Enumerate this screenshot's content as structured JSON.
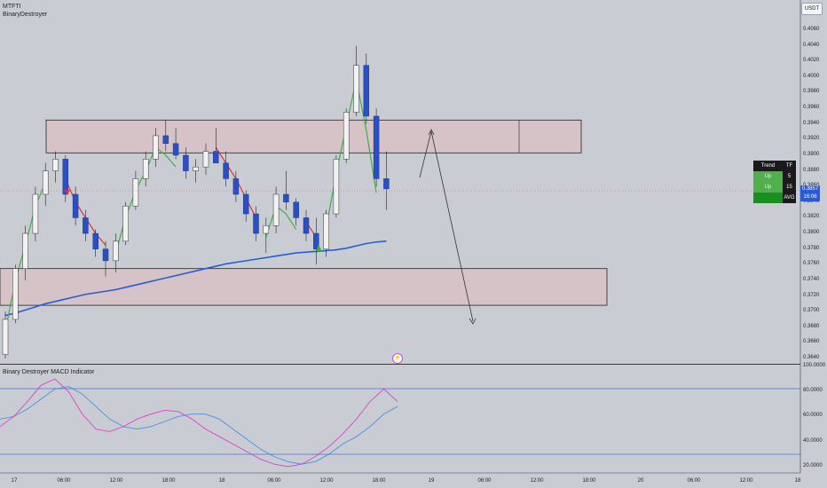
{
  "header": {
    "symbol": "MTFTI",
    "indicator_name": "BinaryDestroyer",
    "currency_button": "USDT"
  },
  "price_axis": {
    "labels": [
      "0.4060",
      "0.4040",
      "0.4020",
      "0.4000",
      "0.3980",
      "0.3960",
      "0.3940",
      "0.3920",
      "0.3900",
      "0.3880",
      "0.3860",
      "0.3840",
      "0.3820",
      "0.3800",
      "0.3780",
      "0.3760",
      "0.3740",
      "0.3720",
      "0.3700",
      "0.3680",
      "0.3660",
      "0.3640"
    ]
  },
  "last_price": {
    "price": "0.3857",
    "countdown": "16:06"
  },
  "time_axis": {
    "labels": [
      "17",
      "06:00",
      "12:00",
      "18:00",
      "18",
      "06:00",
      "12:00",
      "18:00",
      "19",
      "06:00",
      "12:00",
      "18:00",
      "20",
      "06:00",
      "12:00",
      "18"
    ]
  },
  "trend_table": {
    "header": [
      "Trend",
      "TF"
    ],
    "rows": [
      [
        "Up",
        "5"
      ],
      [
        "Up",
        "15"
      ],
      [
        "",
        "AVG"
      ]
    ]
  },
  "macd_panel": {
    "title": "Binary Destroyer MACD Indicator",
    "axis_labels": [
      "100.0000",
      "80.0000",
      "60.0000",
      "40.0000",
      "20.0000"
    ]
  },
  "colors": {
    "background": "#c9cdd3",
    "bull_candle": "#f2f2f2",
    "bear_candle": "#2a4fc0",
    "zone_fill": "#d9bfc4",
    "ema_long": "#2a5bd7",
    "trail_up": "#3fae4a",
    "trail_down": "#e0303b",
    "macd_line": "#e040c8",
    "signal_line": "#4a90e0"
  },
  "chart_data": {
    "type": "candlestick",
    "title": "MTFTI",
    "ylim": [
      0.364,
      0.406
    ],
    "series": [
      {
        "name": "candles",
        "values": [
          [
            0.3645,
            0.37,
            0.364,
            0.369
          ],
          [
            0.369,
            0.376,
            0.3685,
            0.3755
          ],
          [
            0.3755,
            0.381,
            0.374,
            0.38
          ],
          [
            0.38,
            0.386,
            0.379,
            0.385
          ],
          [
            0.385,
            0.389,
            0.3835,
            0.388
          ],
          [
            0.388,
            0.3905,
            0.3865,
            0.3895
          ],
          [
            0.3895,
            0.39,
            0.384,
            0.385
          ],
          [
            0.385,
            0.386,
            0.381,
            0.382
          ],
          [
            0.382,
            0.383,
            0.379,
            0.38
          ],
          [
            0.38,
            0.3805,
            0.377,
            0.378
          ],
          [
            0.378,
            0.379,
            0.3745,
            0.3765
          ],
          [
            0.3765,
            0.38,
            0.375,
            0.379
          ],
          [
            0.379,
            0.384,
            0.3785,
            0.3835
          ],
          [
            0.3835,
            0.388,
            0.383,
            0.387
          ],
          [
            0.387,
            0.3905,
            0.386,
            0.3895
          ],
          [
            0.3895,
            0.3935,
            0.3885,
            0.3925
          ],
          [
            0.3925,
            0.3945,
            0.3905,
            0.3915
          ],
          [
            0.3915,
            0.3935,
            0.3895,
            0.39
          ],
          [
            0.39,
            0.391,
            0.387,
            0.388
          ],
          [
            0.388,
            0.3895,
            0.3865,
            0.3885
          ],
          [
            0.3885,
            0.3915,
            0.3875,
            0.3905
          ],
          [
            0.3905,
            0.3935,
            0.389,
            0.389
          ],
          [
            0.389,
            0.3905,
            0.386,
            0.387
          ],
          [
            0.387,
            0.388,
            0.384,
            0.385
          ],
          [
            0.385,
            0.3855,
            0.3815,
            0.3825
          ],
          [
            0.3825,
            0.3835,
            0.379,
            0.38
          ],
          [
            0.38,
            0.382,
            0.3775,
            0.381
          ],
          [
            0.381,
            0.386,
            0.38,
            0.385
          ],
          [
            0.385,
            0.388,
            0.383,
            0.384
          ],
          [
            0.384,
            0.3845,
            0.381,
            0.382
          ],
          [
            0.382,
            0.383,
            0.379,
            0.38
          ],
          [
            0.38,
            0.382,
            0.376,
            0.378
          ],
          [
            0.378,
            0.383,
            0.377,
            0.3825
          ],
          [
            0.3825,
            0.39,
            0.382,
            0.3895
          ],
          [
            0.3895,
            0.396,
            0.389,
            0.3955
          ],
          [
            0.3955,
            0.404,
            0.395,
            0.4015
          ],
          [
            0.4015,
            0.403,
            0.394,
            0.395
          ],
          [
            0.395,
            0.396,
            0.386,
            0.387
          ],
          [
            0.387,
            0.3905,
            0.383,
            0.3857
          ]
        ]
      },
      {
        "name": "ema_long",
        "values": [
          0.3695,
          0.3698,
          0.3702,
          0.3706,
          0.371,
          0.3713,
          0.3716,
          0.3719,
          0.3722,
          0.3724,
          0.3726,
          0.3728,
          0.3731,
          0.3734,
          0.3737,
          0.374,
          0.3743,
          0.3746,
          0.3749,
          0.3752,
          0.3755,
          0.3758,
          0.3761,
          0.3763,
          0.3765,
          0.3767,
          0.3769,
          0.3771,
          0.3773,
          0.3775,
          0.3776,
          0.3777,
          0.3778,
          0.3779,
          0.3781,
          0.3784,
          0.3787,
          0.3789,
          0.379
        ]
      }
    ],
    "zones": [
      {
        "top": 0.3945,
        "bottom": 0.3903
      },
      {
        "top": 0.3755,
        "bottom": 0.3708
      }
    ],
    "macd": {
      "ylim": [
        15,
        100
      ],
      "macd": [
        52,
        60,
        72,
        85,
        90,
        80,
        62,
        50,
        48,
        52,
        58,
        62,
        65,
        64,
        58,
        50,
        44,
        38,
        32,
        26,
        22,
        20,
        22,
        28,
        36,
        46,
        58,
        72,
        82,
        72
      ],
      "signal": [
        58,
        60,
        66,
        74,
        82,
        84,
        78,
        68,
        58,
        52,
        50,
        52,
        56,
        60,
        62,
        62,
        58,
        50,
        42,
        34,
        28,
        24,
        22,
        24,
        30,
        38,
        44,
        52,
        62,
        68
      ]
    }
  }
}
